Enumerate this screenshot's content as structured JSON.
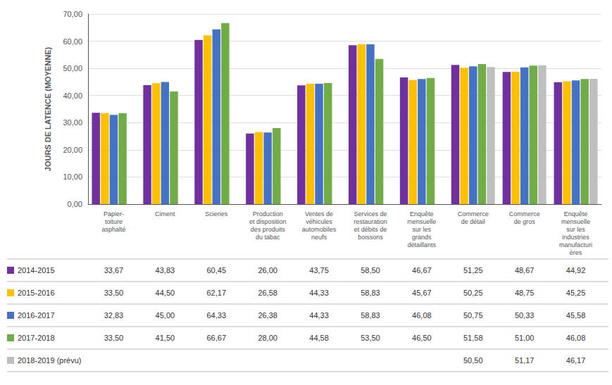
{
  "chart_data": {
    "type": "bar",
    "categories": [
      "Papier-\ntoiture\nasphalté",
      "Ciment",
      "Scieries",
      "Production\net disposition\ndes produits\ndu tabac",
      "Ventes de\nvéhicules\nautomobiles\nneufs",
      "Services de\nrestauration\net débits de\nboissons",
      "Enquête\nmensuelle\nsur les\ngrands\ndétaillants",
      "Commerce\nde détail",
      "Commerce\nde gros",
      "Enquête\nmensuelle\nsur les\nindustries\nmanufacturi\nères"
    ],
    "series": [
      {
        "name": "2014-2015",
        "color": "#7030A0",
        "values": [
          33.67,
          43.83,
          60.45,
          26.0,
          43.75,
          58.5,
          46.67,
          51.25,
          48.67,
          44.92
        ],
        "value_labels": [
          "33,67",
          "43,83",
          "60,45",
          "26,00",
          "43,75",
          "58,50",
          "46,67",
          "51,25",
          "48,67",
          "44,92"
        ]
      },
      {
        "name": "2015-2016",
        "color": "#FFC000",
        "values": [
          33.5,
          44.5,
          62.17,
          26.58,
          44.33,
          58.83,
          45.67,
          50.25,
          48.75,
          45.25
        ],
        "value_labels": [
          "33,50",
          "44,50",
          "62,17",
          "26,58",
          "44,33",
          "58,83",
          "45,67",
          "50,25",
          "48,75",
          "45,25"
        ]
      },
      {
        "name": "2016-2017",
        "color": "#4472C4",
        "values": [
          32.83,
          45.0,
          64.33,
          26.38,
          44.33,
          58.83,
          46.08,
          50.75,
          50.33,
          45.58
        ],
        "value_labels": [
          "32,83",
          "45,00",
          "64,33",
          "26,38",
          "44,33",
          "58,83",
          "46,08",
          "50,75",
          "50,33",
          "45,58"
        ]
      },
      {
        "name": "2017-2018",
        "color": "#70AD47",
        "values": [
          33.5,
          41.5,
          66.67,
          28.0,
          44.58,
          53.5,
          46.5,
          51.58,
          51.0,
          46.08
        ],
        "value_labels": [
          "33,50",
          "41,50",
          "66,67",
          "28,00",
          "44,58",
          "53,50",
          "46,50",
          "51,58",
          "51,00",
          "46,08"
        ]
      },
      {
        "name": "2018-2019 (prévu)",
        "color": "#BFBFBF",
        "values": [
          null,
          null,
          null,
          null,
          null,
          null,
          null,
          50.5,
          51.17,
          46.17
        ],
        "value_labels": [
          null,
          null,
          null,
          null,
          null,
          null,
          null,
          "50,50",
          "51,17",
          "46,17"
        ]
      }
    ],
    "ylabel": "JOURS DE LATENCE (MOYENNE)",
    "ylim": [
      0,
      70
    ],
    "yticks": [
      {
        "value": 0,
        "label": "0,00"
      },
      {
        "value": 10,
        "label": "10,00"
      },
      {
        "value": 20,
        "label": "20,00"
      },
      {
        "value": 30,
        "label": "30,00"
      },
      {
        "value": 40,
        "label": "40,00"
      },
      {
        "value": 50,
        "label": "50,00"
      },
      {
        "value": 60,
        "label": "60,00"
      },
      {
        "value": 70,
        "label": "70,00"
      }
    ],
    "grid": true
  }
}
